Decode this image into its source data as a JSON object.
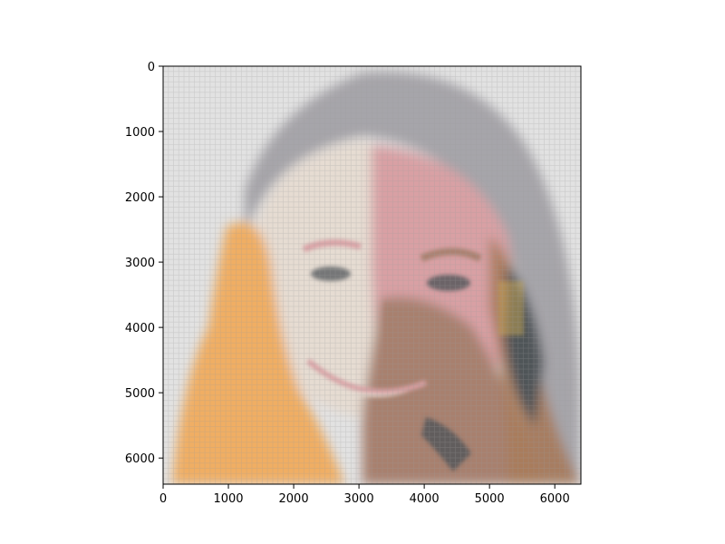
{
  "chart_data": {
    "type": "heatmap",
    "title": "",
    "xlabel": "",
    "ylabel": "",
    "xlim": [
      0,
      6400
    ],
    "ylim": [
      6400,
      0
    ],
    "x_ticks": [
      0,
      1000,
      2000,
      3000,
      4000,
      5000,
      6000
    ],
    "y_ticks": [
      0,
      1000,
      2000,
      3000,
      4000,
      5000,
      6000
    ],
    "x_tick_labels": [
      "0",
      "1000",
      "2000",
      "3000",
      "4000",
      "5000",
      "6000"
    ],
    "y_tick_labels": [
      "0",
      "1000",
      "2000",
      "3000",
      "4000",
      "5000",
      "6000"
    ],
    "grid": false,
    "legend": "none",
    "image_content": "mosaic image of a smiling face",
    "palette": {
      "background": "#e2e2e2",
      "skin_light": "#e6dcd2",
      "skin_pink": "#d9a0a4",
      "skin_shadow": "#a8806e",
      "orange": "#f0ae64",
      "hair_grey": "#9c9aa0",
      "dark": "#505458",
      "brown": "#a87a5a",
      "gold": "#d4b050"
    }
  }
}
